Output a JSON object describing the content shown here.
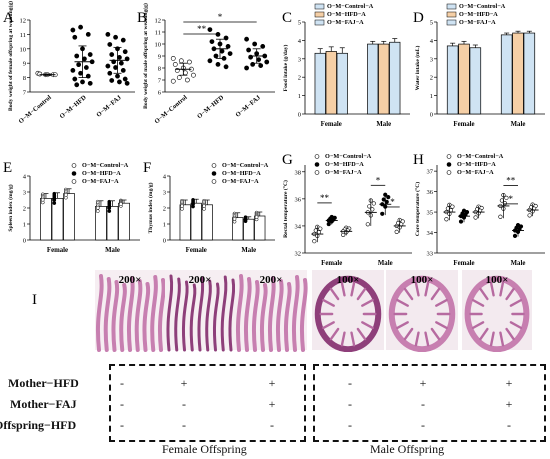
{
  "panels": [
    {
      "letter": "A"
    },
    {
      "letter": "B"
    },
    {
      "letter": "C"
    },
    {
      "letter": "D"
    },
    {
      "letter": "E"
    },
    {
      "letter": "F"
    },
    {
      "letter": "G"
    },
    {
      "letter": "H"
    },
    {
      "letter": "I"
    }
  ],
  "chart_data": [
    {
      "id": "A",
      "type": "scatter",
      "ylabel": "Body weight of female offspring at weaning(g)",
      "categories": [
        "O−M−Control",
        "O−M−HFD",
        "O−M−FAJ"
      ],
      "yticks": [
        7,
        8,
        9,
        10,
        11,
        12
      ],
      "ylim": [
        7,
        12
      ],
      "means": [
        8.2,
        9.1,
        9.2
      ],
      "errors": [
        0.05,
        1.1,
        0.9
      ],
      "points": [
        [
          8.3,
          8.2,
          8.2,
          8.25,
          8.2,
          8.2
        ],
        [
          11.3,
          11.5,
          11.0,
          10.8,
          10.0,
          9.6,
          9.5,
          9.3,
          9.1,
          8.9,
          8.7,
          8.5,
          8.3,
          8.1,
          7.9,
          7.7,
          7.6,
          7.5
        ],
        [
          11.0,
          10.8,
          10.6,
          10.3,
          10.0,
          9.8,
          9.6,
          9.4,
          9.3,
          9.1,
          9.0,
          8.8,
          8.7,
          8.5,
          8.3,
          8.1,
          7.9,
          7.8,
          7.7,
          7.6
        ]
      ]
    },
    {
      "id": "B",
      "type": "scatter",
      "ylabel": "Body weight of male offspring at weaning(g)",
      "categories": [
        "O−M−Control",
        "O−M−HFD",
        "O−M−FAJ"
      ],
      "yticks": [
        6,
        7,
        8,
        9,
        10,
        11,
        12
      ],
      "ylim": [
        6,
        12
      ],
      "means": [
        7.9,
        9.6,
        9.0
      ],
      "errors": [
        0.5,
        0.8,
        0.6
      ],
      "points": [
        [
          8.8,
          8.6,
          8.5,
          8.3,
          8.0,
          7.9,
          7.8,
          7.6,
          7.4,
          7.2,
          7.0,
          6.9
        ],
        [
          11.2,
          10.8,
          10.5,
          10.2,
          10.0,
          9.8,
          9.6,
          9.4,
          9.2,
          9.0,
          8.8,
          8.6,
          8.3,
          8.1
        ],
        [
          10.4,
          10.0,
          9.8,
          9.5,
          9.2,
          9.0,
          8.9,
          8.7,
          8.5,
          8.3,
          8.2,
          8.0
        ]
      ],
      "significance": [
        {
          "from": 0,
          "to": 1,
          "label": "**"
        },
        {
          "from": 0,
          "to": 2,
          "label": "*"
        }
      ]
    },
    {
      "id": "C",
      "type": "bar",
      "ylabel": "Food intake (g/day)",
      "categories": [
        "Female",
        "Male"
      ],
      "yticks": [
        0,
        1,
        2,
        3,
        4,
        5
      ],
      "ylim": [
        0,
        5
      ],
      "series": [
        {
          "name": "O−M−Control−A",
          "values": [
            3.3,
            3.8
          ],
          "errors": [
            0.25,
            0.15
          ]
        },
        {
          "name": "O−M−HFD−A",
          "values": [
            3.4,
            3.8
          ],
          "errors": [
            0.25,
            0.15
          ]
        },
        {
          "name": "O−M−FAJ−A",
          "values": [
            3.3,
            3.9
          ],
          "errors": [
            0.3,
            0.2
          ]
        }
      ]
    },
    {
      "id": "D",
      "type": "bar",
      "ylabel": "Water intake (mL)",
      "categories": [
        "Female",
        "Male"
      ],
      "yticks": [
        0,
        1,
        2,
        3,
        4,
        5
      ],
      "ylim": [
        0,
        5
      ],
      "series": [
        {
          "name": "O−M−Control−A",
          "values": [
            3.7,
            4.3
          ],
          "errors": [
            0.15,
            0.1
          ]
        },
        {
          "name": "O−M−HFD−A",
          "values": [
            3.8,
            4.4
          ],
          "errors": [
            0.15,
            0.1
          ]
        },
        {
          "name": "O−M−FAJ−A",
          "values": [
            3.6,
            4.4
          ],
          "errors": [
            0.15,
            0.1
          ]
        }
      ]
    },
    {
      "id": "E",
      "type": "bar",
      "ylabel": "Spleen index (mg/g)",
      "categories": [
        "Female",
        "Male"
      ],
      "yticks": [
        0,
        1,
        2,
        3,
        4
      ],
      "ylim": [
        0,
        4
      ],
      "series": [
        {
          "name": "O−M−Control−A",
          "values": [
            2.6,
            2.1
          ],
          "errors": [
            0.3,
            0.35
          ]
        },
        {
          "name": "O−M−HFD−A",
          "values": [
            2.6,
            2.1
          ],
          "errors": [
            0.35,
            0.35
          ]
        },
        {
          "name": "O−M−FAJ−A",
          "values": [
            2.9,
            2.3
          ],
          "errors": [
            0.3,
            0.2
          ]
        }
      ]
    },
    {
      "id": "F",
      "type": "bar",
      "ylabel": "Thymus index (mg/g)",
      "categories": [
        "Female",
        "Male"
      ],
      "yticks": [
        0,
        1,
        2,
        3,
        4
      ],
      "ylim": [
        0,
        4
      ],
      "series": [
        {
          "name": "O−M−Control−A",
          "values": [
            2.2,
            1.4
          ],
          "errors": [
            0.3,
            0.3
          ]
        },
        {
          "name": "O−M−HFD−A",
          "values": [
            2.3,
            1.3
          ],
          "errors": [
            0.25,
            0.15
          ]
        },
        {
          "name": "O−M−FAJ−A",
          "values": [
            2.2,
            1.5
          ],
          "errors": [
            0.3,
            0.25
          ]
        }
      ]
    },
    {
      "id": "G",
      "type": "scatter",
      "ylabel": "Rectal temperature (°C)",
      "categories": [
        "Female",
        "Male"
      ],
      "yticks": [
        32,
        34,
        36,
        38
      ],
      "ylim": [
        32,
        38.5
      ],
      "series": [
        {
          "name": "O−M−Control−A",
          "values": [
            33.4,
            35.0
          ],
          "errors": [
            0.6,
            1.0
          ]
        },
        {
          "name": "O−M−HFD−A",
          "values": [
            34.4,
            35.6
          ],
          "errors": [
            0.3,
            0.8
          ]
        },
        {
          "name": "O−M−FAJ−A",
          "values": [
            33.6,
            34.0
          ],
          "errors": [
            0.3,
            0.5
          ]
        }
      ],
      "significance": [
        {
          "group": 0,
          "label": "**"
        },
        {
          "group": 1,
          "label": "*"
        },
        {
          "group": 1,
          "label": "*"
        }
      ]
    },
    {
      "id": "H",
      "type": "scatter",
      "ylabel": "Core temperature (°C)",
      "categories": [
        "Female",
        "Male"
      ],
      "yticks": [
        33,
        34,
        35,
        36,
        37
      ],
      "ylim": [
        33,
        37.3
      ],
      "series": [
        {
          "name": "O−M−Control−A",
          "values": [
            35.0,
            35.3
          ],
          "errors": [
            0.4,
            0.6
          ]
        },
        {
          "name": "O−M−HFD−A",
          "values": [
            34.8,
            34.1
          ],
          "errors": [
            0.3,
            0.3
          ]
        },
        {
          "name": "O−M−FAJ−A",
          "values": [
            35.0,
            35.1
          ],
          "errors": [
            0.3,
            0.3
          ]
        }
      ],
      "significance": [
        {
          "group": 1,
          "label": "**"
        },
        {
          "group": 1,
          "label": "*"
        }
      ]
    }
  ],
  "micrographs": [
    {
      "mag": "200×",
      "style": "villi-pink"
    },
    {
      "mag": "200×",
      "style": "villi-dense"
    },
    {
      "mag": "200×",
      "style": "villi-long"
    },
    {
      "mag": "100×",
      "style": "ring-dark"
    },
    {
      "mag": "100×",
      "style": "ring-light"
    },
    {
      "mag": "100×",
      "style": "ring-folded"
    }
  ],
  "table": {
    "rows": [
      {
        "label": "Mother−HFD",
        "female": [
          "-",
          "+",
          "+"
        ],
        "male": [
          "-",
          "+",
          "+"
        ]
      },
      {
        "label": "Mother−FAJ",
        "female": [
          "-",
          "-",
          "+"
        ],
        "male": [
          "-",
          "-",
          "+"
        ]
      },
      {
        "label": "Offspring−HFD",
        "female": [
          "-",
          "-",
          "-"
        ],
        "male": [
          "-",
          "-",
          "-"
        ]
      }
    ],
    "female_label": "Female Offspring",
    "male_label": "Male Offspring"
  },
  "colors": {
    "control": "#ffffff",
    "hfd": "#000000",
    "faj": "#ffffff",
    "tissue": "#c77fb0",
    "tissue_dark": "#8e3f7a"
  }
}
